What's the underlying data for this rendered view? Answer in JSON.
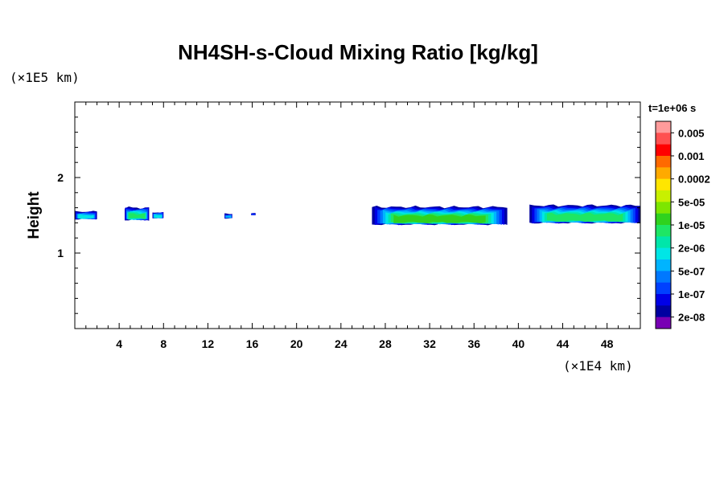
{
  "chart_data": {
    "type": "heatmap",
    "title": "NH4SH-s-Cloud Mixing Ratio [kg/kg]",
    "ylabel": "Height",
    "x_unit": "(×1E4 km)",
    "y_unit": "(×1E5 km)",
    "time_label": "t=1e+06 s",
    "xlim": [
      0,
      51
    ],
    "ylim": [
      0,
      3
    ],
    "x_ticks": [
      4,
      8,
      12,
      16,
      20,
      24,
      28,
      32,
      36,
      40,
      44,
      48
    ],
    "y_ticks": [
      1,
      2
    ],
    "colorbar": {
      "labels": [
        "0.005",
        "0.001",
        "0.0002",
        "5e-05",
        "1e-05",
        "2e-06",
        "5e-07",
        "1e-07",
        "2e-08"
      ],
      "colors": [
        "#ff9b9b",
        "#ff5050",
        "#ff0000",
        "#ff6a00",
        "#ffaa00",
        "#ffe600",
        "#c8f000",
        "#7de600",
        "#2fd21e",
        "#1ee664",
        "#00e6aa",
        "#00e6e6",
        "#00b4ff",
        "#0078ff",
        "#0040ff",
        "#0000e6",
        "#0000a0",
        "#7800b4"
      ]
    },
    "cloud_layers": [
      {
        "x0": 0.0,
        "x1": 2.0,
        "ybot": 1.45,
        "ytop": 1.55,
        "core": 0.35
      },
      {
        "x0": 4.5,
        "x1": 6.7,
        "ybot": 1.44,
        "ytop": 1.6,
        "core": 0.5
      },
      {
        "x0": 7.0,
        "x1": 8.0,
        "ybot": 1.46,
        "ytop": 1.54,
        "core": 0.3
      },
      {
        "x0": 13.5,
        "x1": 14.2,
        "ybot": 1.46,
        "ytop": 1.52,
        "core": 0.2
      },
      {
        "x0": 15.9,
        "x1": 16.3,
        "ybot": 1.5,
        "ytop": 1.53,
        "core": 0.0
      },
      {
        "x0": 26.8,
        "x1": 39.0,
        "ybot": 1.38,
        "ytop": 1.61,
        "core": 0.7
      },
      {
        "x0": 41.0,
        "x1": 51.0,
        "ybot": 1.4,
        "ytop": 1.63,
        "core": 0.55
      }
    ]
  }
}
